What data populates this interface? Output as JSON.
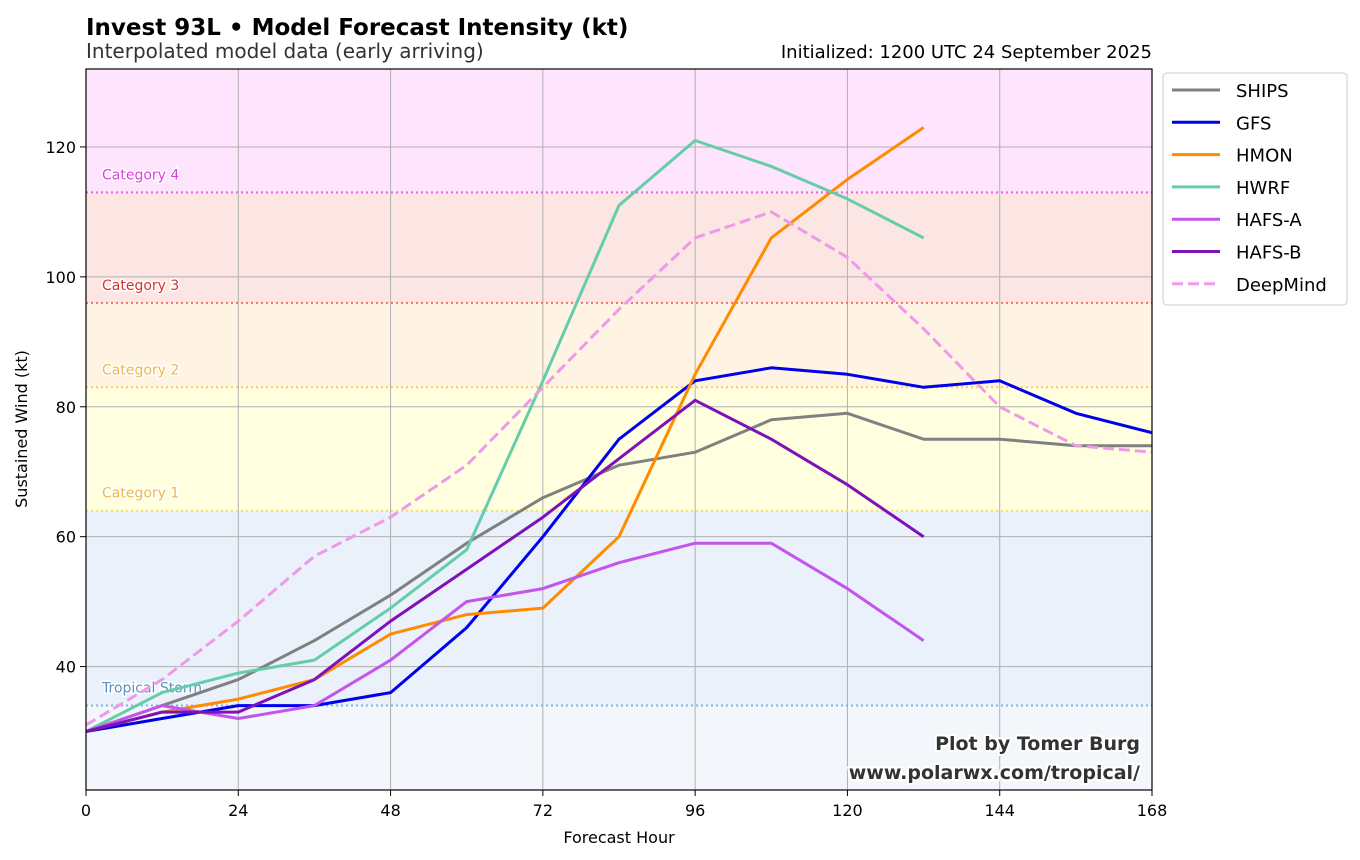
{
  "chart_data": {
    "type": "line",
    "title": "Invest 93L • Model Forecast Intensity (kt)",
    "subtitle": "Interpolated model data (early arriving)",
    "initialized": "Initialized: 1200 UTC 24 September 2025",
    "xlabel": "Forecast Hour",
    "ylabel": "Sustained Wind (kt)",
    "xlim": [
      0,
      168
    ],
    "ylim": [
      21,
      132
    ],
    "xticks": [
      0,
      24,
      48,
      72,
      96,
      120,
      144,
      168
    ],
    "yticks": [
      40,
      60,
      80,
      100,
      120
    ],
    "grid": true,
    "legend_position": "outside-right",
    "categories": [
      {
        "label": "Tropical Storm",
        "threshold": 34,
        "from": 34,
        "to": 64,
        "band_color": "#eaf1fa",
        "line_color": "#7fb2e5",
        "text_color": "#5b8fbf"
      },
      {
        "label": "Category 1",
        "threshold": 64,
        "from": 64,
        "to": 83,
        "band_color": "#ffffe0",
        "line_color": "#f2e063",
        "text_color": "#efb84a"
      },
      {
        "label": "Category 2",
        "threshold": 83,
        "from": 83,
        "to": 96,
        "band_color": "#fff4e3",
        "line_color": "#f5cf55",
        "text_color": "#efb84a"
      },
      {
        "label": "Category 3",
        "threshold": 96,
        "from": 96,
        "to": 113,
        "band_color": "#fce6e4",
        "line_color": "#ee6f5f",
        "text_color": "#d0352e"
      },
      {
        "label": "Category 4",
        "threshold": 113,
        "from": 113,
        "to": 132,
        "band_color": "#ffe4fd",
        "line_color": "#e75fe8",
        "text_color": "#dc3fdc"
      }
    ],
    "below_band_color": "#f3f7fc",
    "series": [
      {
        "name": "SHIPS",
        "color": "#808080",
        "dash": false,
        "x": [
          0,
          12,
          24,
          36,
          48,
          60,
          72,
          84,
          96,
          108,
          120,
          132,
          144,
          156,
          168
        ],
        "values": [
          30,
          34,
          38,
          44,
          51,
          59,
          66,
          71,
          73,
          78,
          79,
          75,
          75,
          74,
          74
        ]
      },
      {
        "name": "GFS",
        "color": "#0000ee",
        "dash": false,
        "x": [
          0,
          12,
          24,
          36,
          48,
          60,
          72,
          84,
          96,
          108,
          120,
          132,
          144,
          156,
          168
        ],
        "values": [
          30,
          32,
          34,
          34,
          36,
          46,
          60,
          75,
          84,
          86,
          85,
          83,
          84,
          79,
          76
        ]
      },
      {
        "name": "HMON",
        "color": "#ff8c00",
        "dash": false,
        "x": [
          0,
          12,
          24,
          36,
          48,
          60,
          72,
          84,
          96,
          108,
          120,
          132
        ],
        "values": [
          30,
          33,
          35,
          38,
          45,
          48,
          49,
          60,
          85,
          106,
          115,
          123
        ]
      },
      {
        "name": "HWRF",
        "color": "#66cdaa",
        "dash": false,
        "x": [
          0,
          12,
          24,
          36,
          48,
          60,
          72,
          84,
          96,
          108,
          120,
          132
        ],
        "values": [
          30,
          36,
          39,
          41,
          49,
          58,
          84,
          111,
          121,
          117,
          112,
          106
        ]
      },
      {
        "name": "HAFS-A",
        "color": "#c355ec",
        "dash": false,
        "x": [
          0,
          12,
          24,
          36,
          48,
          60,
          72,
          84,
          96,
          108,
          120,
          132
        ],
        "values": [
          30,
          34,
          32,
          34,
          41,
          50,
          52,
          56,
          59,
          59,
          52,
          44
        ]
      },
      {
        "name": "HAFS-B",
        "color": "#7e12b9",
        "dash": false,
        "x": [
          0,
          12,
          24,
          36,
          48,
          60,
          72,
          84,
          96,
          108,
          120,
          132
        ],
        "values": [
          30,
          33,
          33,
          38,
          47,
          55,
          63,
          72,
          81,
          75,
          68,
          60
        ]
      },
      {
        "name": "DeepMind",
        "color": "#ee9ae8",
        "dash": true,
        "x": [
          0,
          12,
          24,
          36,
          48,
          60,
          72,
          84,
          96,
          108,
          120,
          132,
          144,
          156,
          168
        ],
        "values": [
          31,
          38,
          47,
          57,
          63,
          71,
          83,
          95,
          106,
          110,
          103,
          92,
          80,
          74,
          73
        ]
      }
    ],
    "credit_line1": "Plot by Tomer Burg",
    "credit_line2": "www.polarwx.com/tropical/"
  }
}
